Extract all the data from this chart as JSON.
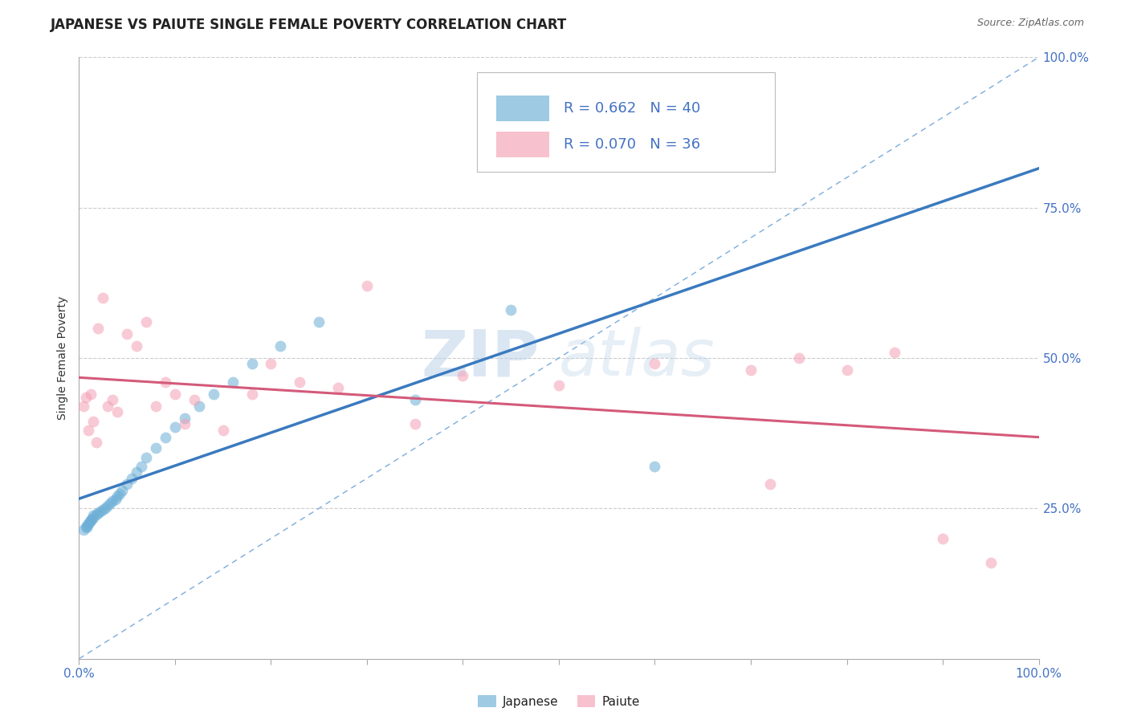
{
  "title": "JAPANESE VS PAIUTE SINGLE FEMALE POVERTY CORRELATION CHART",
  "source": "Source: ZipAtlas.com",
  "ylabel": "Single Female Poverty",
  "xlim": [
    0,
    1
  ],
  "ylim": [
    0,
    1
  ],
  "watermark": "ZIPatlas",
  "legend_japanese": "R = 0.662   N = 40",
  "legend_paiute": "R = 0.070   N = 36",
  "japanese_color": "#6baed6",
  "paiute_color": "#f4a0b5",
  "japanese_line_color": "#3a7abf",
  "paiute_line_color": "#d45a7a",
  "ref_line_color": "#7aabdd",
  "background_color": "#ffffff",
  "grid_color": "#cccccc",
  "japanese_x": [
    0.005,
    0.007,
    0.008,
    0.009,
    0.01,
    0.011,
    0.012,
    0.013,
    0.015,
    0.015,
    0.018,
    0.02,
    0.022,
    0.025,
    0.027,
    0.03,
    0.032,
    0.035,
    0.038,
    0.04,
    0.042,
    0.045,
    0.05,
    0.055,
    0.06,
    0.065,
    0.07,
    0.08,
    0.09,
    0.1,
    0.11,
    0.125,
    0.14,
    0.16,
    0.18,
    0.21,
    0.25,
    0.35,
    0.45,
    0.6
  ],
  "japanese_y": [
    0.215,
    0.22,
    0.218,
    0.222,
    0.225,
    0.228,
    0.23,
    0.232,
    0.235,
    0.238,
    0.24,
    0.242,
    0.245,
    0.248,
    0.25,
    0.255,
    0.258,
    0.262,
    0.265,
    0.27,
    0.275,
    0.28,
    0.29,
    0.3,
    0.31,
    0.32,
    0.335,
    0.35,
    0.368,
    0.385,
    0.4,
    0.42,
    0.44,
    0.46,
    0.49,
    0.52,
    0.56,
    0.43,
    0.58,
    0.32
  ],
  "paiute_x": [
    0.005,
    0.007,
    0.01,
    0.012,
    0.015,
    0.018,
    0.02,
    0.025,
    0.03,
    0.035,
    0.04,
    0.05,
    0.06,
    0.07,
    0.08,
    0.09,
    0.1,
    0.11,
    0.12,
    0.15,
    0.18,
    0.2,
    0.23,
    0.27,
    0.3,
    0.35,
    0.4,
    0.5,
    0.6,
    0.7,
    0.72,
    0.75,
    0.8,
    0.85,
    0.9,
    0.95
  ],
  "paiute_y": [
    0.42,
    0.435,
    0.38,
    0.44,
    0.395,
    0.36,
    0.55,
    0.6,
    0.42,
    0.43,
    0.41,
    0.54,
    0.52,
    0.56,
    0.42,
    0.46,
    0.44,
    0.39,
    0.43,
    0.38,
    0.44,
    0.49,
    0.46,
    0.45,
    0.62,
    0.39,
    0.47,
    0.455,
    0.49,
    0.48,
    0.29,
    0.5,
    0.48,
    0.51,
    0.2,
    0.16
  ],
  "title_fontsize": 12,
  "axis_fontsize": 11,
  "legend_fontsize": 13,
  "dot_size": 100,
  "dot_alpha": 0.55,
  "line_width": 2.2
}
